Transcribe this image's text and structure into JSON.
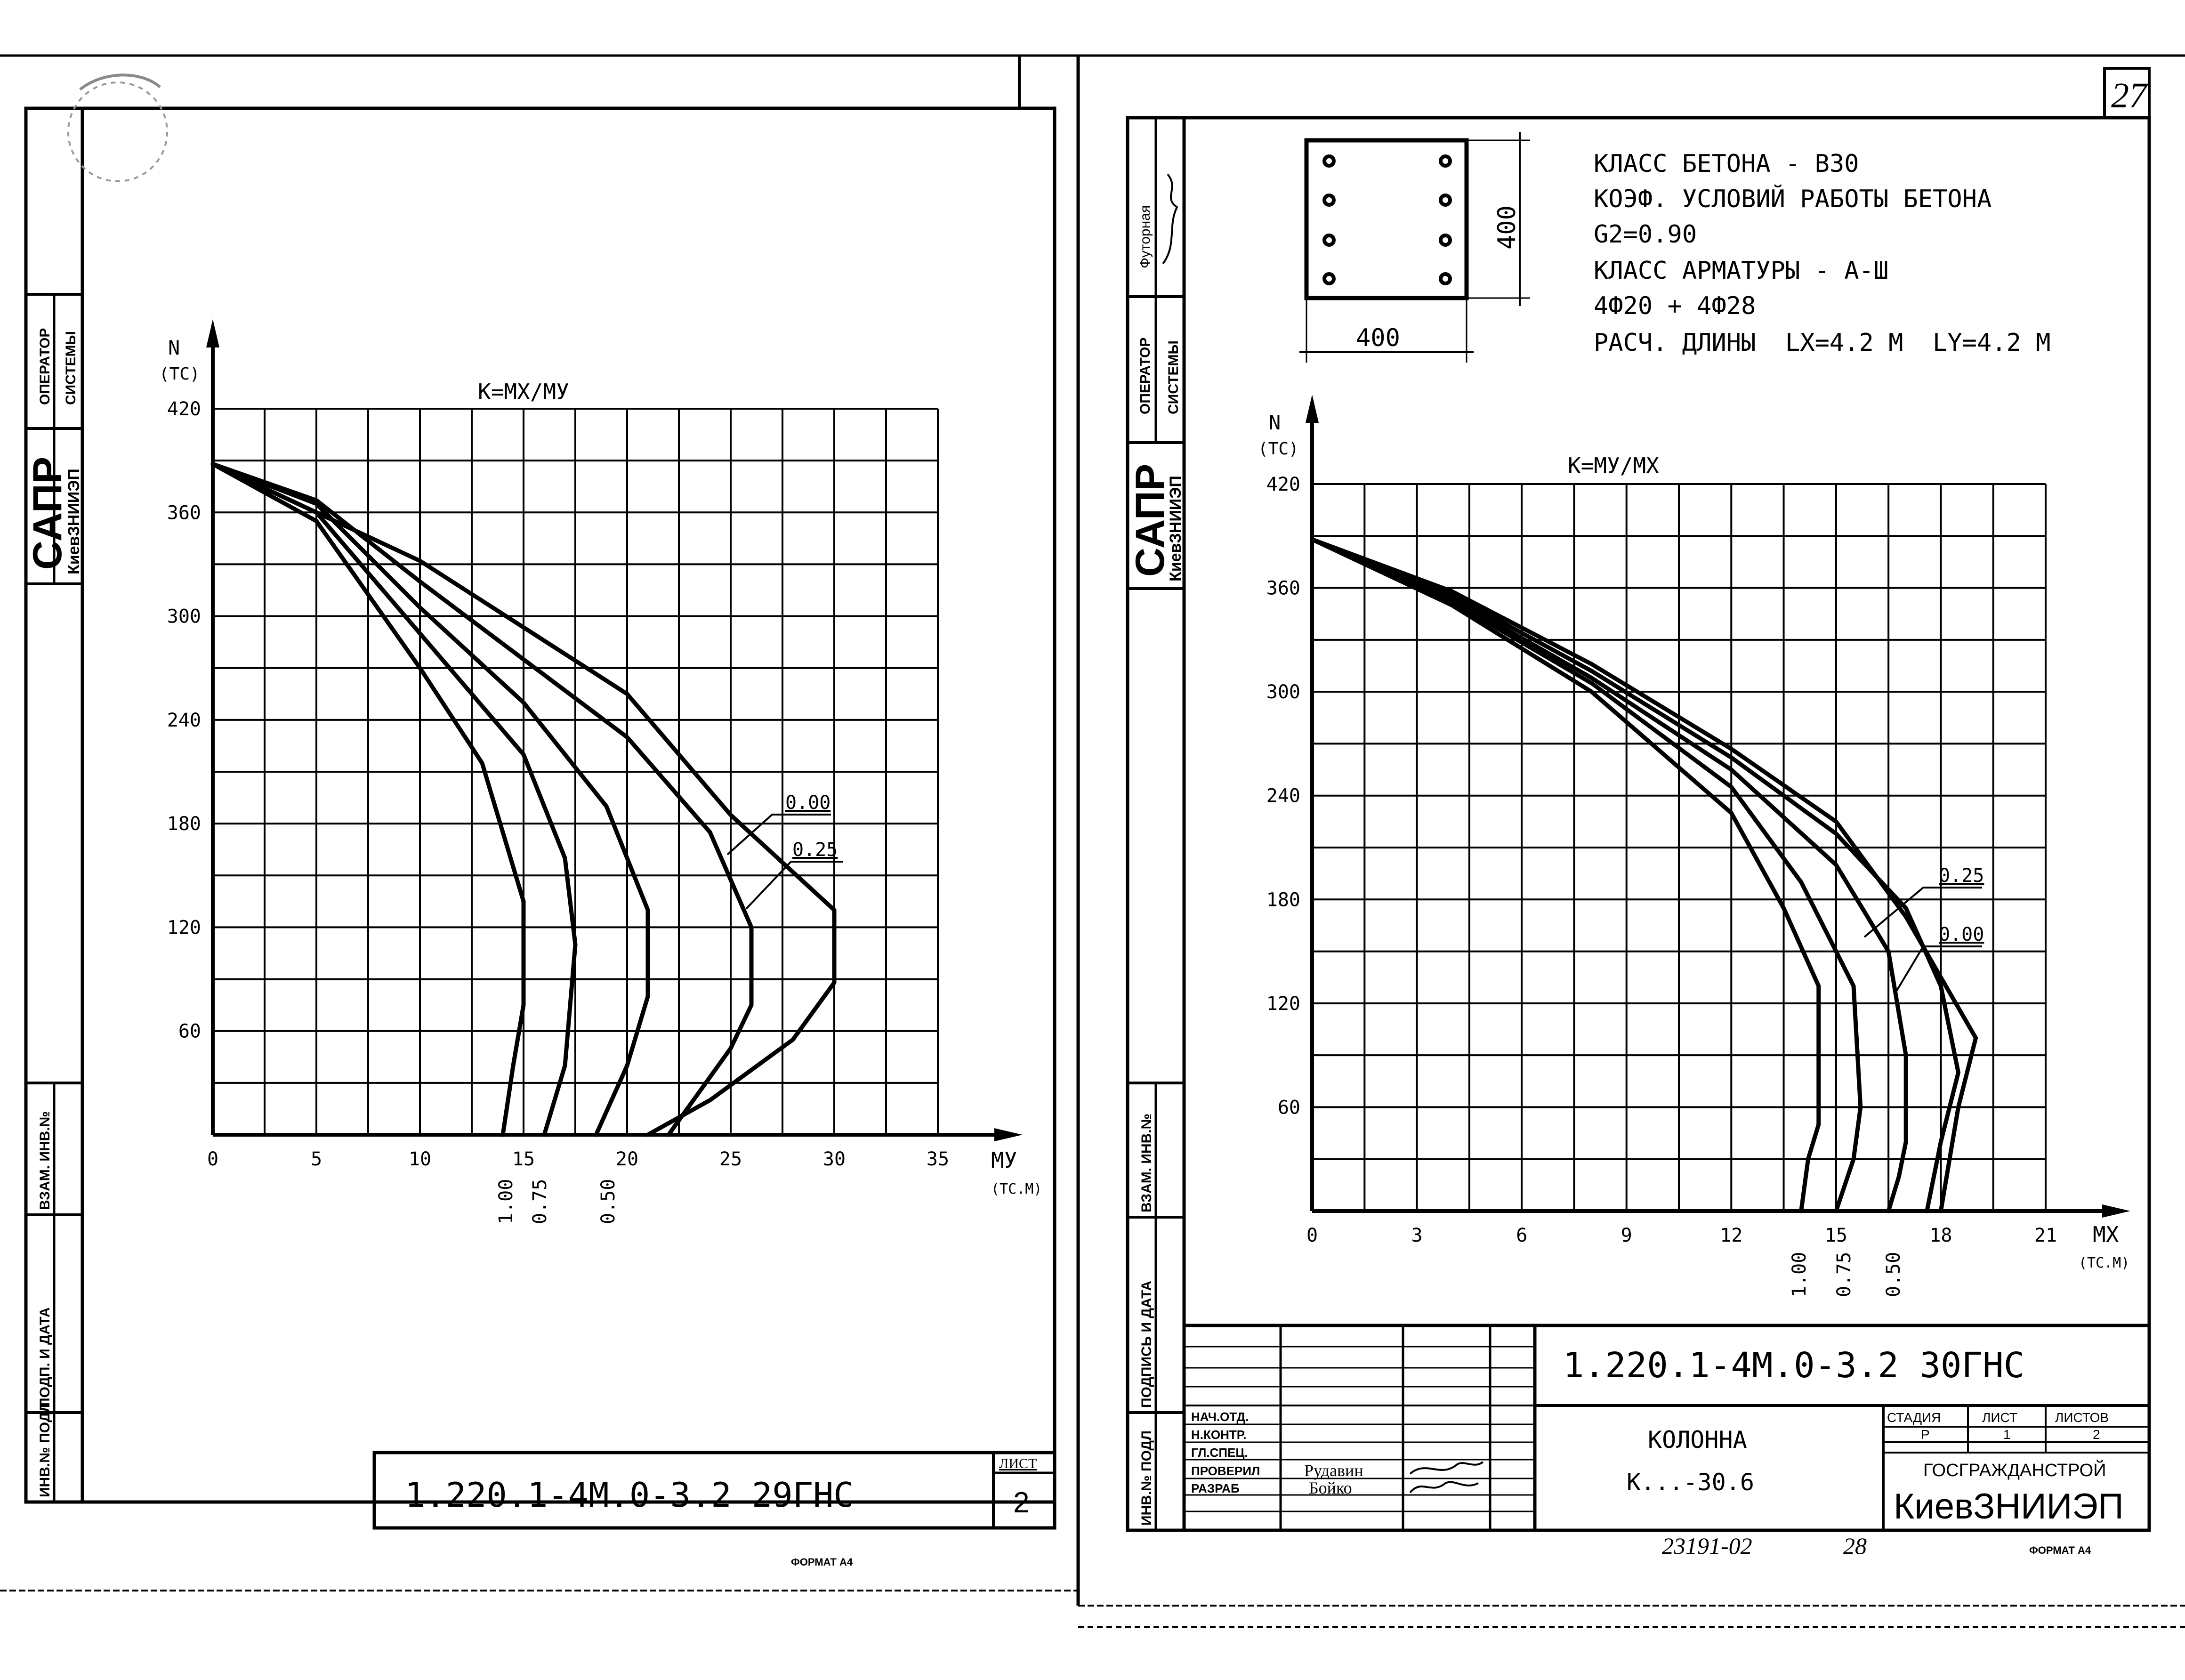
{
  "left_sheet": {
    "stamp_side": {
      "operator": "ОПЕРАТОР",
      "systems": "СИСТЕМЫ",
      "sapr": "САПР",
      "org": "КиевЗНИИЭП"
    },
    "side_strip": [
      "ВЗАМ. ИНВ.№",
      "ПОДП. И ДАТА",
      "ИНВ.№ ПОДЛ"
    ],
    "title_code": "1.220.1-4М.0-3.2 29ГНС",
    "sheet_label": "ЛИСТ",
    "sheet_number": "2",
    "format": "ФОРМАТ А4"
  },
  "right_sheet": {
    "page_number": "27",
    "stamp_side": {
      "futor": "Футорная",
      "operator": "ОПЕРАТОР",
      "systems": "СИСТЕМЫ",
      "sapr": "САПР",
      "org": "КиевЗНИИЭП"
    },
    "side_strip": [
      "ВЗАМ. ИНВ.№",
      "ПОДПИСЬ И ДАТА",
      "ИНВ.№ ПОДЛ"
    ],
    "section": {
      "width": "400",
      "height": "400"
    },
    "specs": [
      "КЛАСС БЕТОНА - В30",
      "КОЭФ. УСЛОВИЙ РАБОТЫ БЕТОНА",
      "G2=0.90",
      "КЛАСС АРМАТУРЫ - А-Ш",
      "4Ф20 + 4Ф28",
      "РАСЧ. ДЛИНЫ  LX=4.2 М  LY=4.2 М"
    ],
    "title_block": {
      "code": "1.220.1-4М.0-3.2 30ГНС",
      "roles": [
        "НАЧ.ОТД.",
        "Н.КОНТР.",
        "ГЛ.СПЕЦ.",
        "ПРОВЕРИЛ",
        "РАЗРАБ"
      ],
      "names": [
        "",
        "",
        "",
        "Рудавин",
        "Бойко"
      ],
      "object_name": "КОЛОННА",
      "object_mark": "К...-30.6",
      "stage_label": "СТАДИЯ",
      "sheet_label": "ЛИСТ",
      "sheets_label": "ЛИСТОВ",
      "stage": "Р",
      "sheet": "1",
      "sheets": "2",
      "org_top": "ГОСГРАЖДАНСТРОЙ",
      "org_bottom": "КиевЗНИИЭП"
    },
    "handwritten": {
      "inv": "23191-02",
      "num": "28"
    },
    "format": "ФОРМАТ А4"
  },
  "chart_data": [
    {
      "type": "line",
      "title": "К=МХ/МУ",
      "ylabel": "N",
      "yunit": "(ТС)",
      "xlabel": "МУ",
      "xunit": "(ТС.М)",
      "xlim": [
        0,
        35
      ],
      "ylim": [
        0,
        420
      ],
      "xticks": [
        0,
        5,
        10,
        15,
        20,
        25,
        30,
        35
      ],
      "yticks": [
        60,
        120,
        180,
        240,
        300,
        360,
        420
      ],
      "series": [
        {
          "name": "1.00",
          "points": [
            [
              0,
              388
            ],
            [
              5,
              355
            ],
            [
              10,
              270
            ],
            [
              13,
              215
            ],
            [
              15,
              135
            ],
            [
              15,
              75
            ],
            [
              14.5,
              40
            ],
            [
              14,
              0
            ]
          ]
        },
        {
          "name": "0.75",
          "points": [
            [
              0,
              388
            ],
            [
              5,
              360
            ],
            [
              10,
              290
            ],
            [
              15,
              220
            ],
            [
              17,
              160
            ],
            [
              17.5,
              110
            ],
            [
              17,
              40
            ],
            [
              16,
              0
            ]
          ]
        },
        {
          "name": "0.50",
          "points": [
            [
              0,
              388
            ],
            [
              5,
              365
            ],
            [
              10,
              305
            ],
            [
              15,
              250
            ],
            [
              19,
              190
            ],
            [
              21,
              130
            ],
            [
              21,
              80
            ],
            [
              20,
              40
            ],
            [
              18.5,
              0
            ]
          ]
        },
        {
          "name": "0.25",
          "points": [
            [
              0,
              388
            ],
            [
              5,
              367
            ],
            [
              10,
              320
            ],
            [
              15,
              275
            ],
            [
              20,
              230
            ],
            [
              24,
              175
            ],
            [
              26,
              120
            ],
            [
              26,
              75
            ],
            [
              25,
              50
            ],
            [
              22,
              0
            ]
          ]
        },
        {
          "name": "0.00",
          "points": [
            [
              0,
              388
            ],
            [
              10,
              332
            ],
            [
              20,
              255
            ],
            [
              25,
              185
            ],
            [
              30,
              130
            ],
            [
              30,
              88
            ],
            [
              28,
              55
            ],
            [
              24,
              20
            ],
            [
              21,
              0
            ]
          ]
        }
      ],
      "callouts": [
        "0.00",
        "0.25"
      ],
      "bottom_labels": [
        "1.00",
        "0.75",
        "0.50"
      ]
    },
    {
      "type": "line",
      "title": "К=МУ/МХ",
      "ylabel": "N",
      "yunit": "(ТС)",
      "xlabel": "МХ",
      "xunit": "(ТС.М)",
      "xlim": [
        0,
        21
      ],
      "ylim": [
        0,
        420
      ],
      "xticks": [
        0,
        3,
        6,
        9,
        12,
        15,
        18,
        21
      ],
      "yticks": [
        60,
        120,
        180,
        240,
        300,
        360,
        420
      ],
      "series": [
        {
          "name": "1.00",
          "points": [
            [
              0,
              388
            ],
            [
              4,
              350
            ],
            [
              8,
              300
            ],
            [
              12,
              230
            ],
            [
              13.5,
              175
            ],
            [
              14.5,
              130
            ],
            [
              14.5,
              50
            ],
            [
              14.2,
              30
            ],
            [
              14,
              0
            ]
          ]
        },
        {
          "name": "0.75",
          "points": [
            [
              0,
              388
            ],
            [
              4,
              352
            ],
            [
              8,
              305
            ],
            [
              12,
              245
            ],
            [
              14,
              190
            ],
            [
              15.5,
              130
            ],
            [
              15.7,
              60
            ],
            [
              15.5,
              30
            ],
            [
              15,
              0
            ]
          ]
        },
        {
          "name": "0.50",
          "points": [
            [
              0,
              388
            ],
            [
              4,
              354
            ],
            [
              8,
              308
            ],
            [
              12,
              255
            ],
            [
              15,
              200
            ],
            [
              16.5,
              150
            ],
            [
              17,
              90
            ],
            [
              17,
              40
            ],
            [
              16.8,
              20
            ],
            [
              16.5,
              0
            ]
          ]
        },
        {
          "name": "0.25",
          "points": [
            [
              0,
              388
            ],
            [
              4,
              356
            ],
            [
              8,
              312
            ],
            [
              12,
              262
            ],
            [
              15,
              218
            ],
            [
              17,
              175
            ],
            [
              18,
              130
            ],
            [
              18.5,
              80
            ],
            [
              18,
              40
            ],
            [
              17.6,
              0
            ]
          ]
        },
        {
          "name": "0.00",
          "points": [
            [
              0,
              388
            ],
            [
              4,
              358
            ],
            [
              8,
              316
            ],
            [
              12,
              267
            ],
            [
              15,
              225
            ],
            [
              17,
              170
            ],
            [
              19,
              100
            ],
            [
              18.5,
              60
            ],
            [
              18,
              0
            ]
          ]
        }
      ],
      "callouts": [
        "0.25",
        "0.00"
      ],
      "bottom_labels": [
        "1.00",
        "0.75",
        "0.50"
      ]
    }
  ]
}
